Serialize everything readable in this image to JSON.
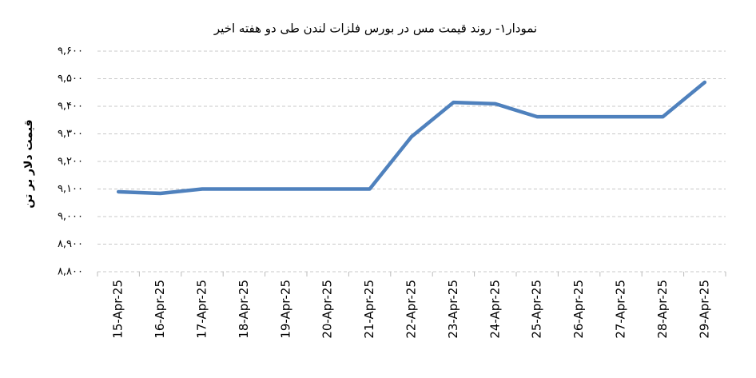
{
  "chart_data": {
    "type": "line",
    "title": "نمودار۱- روند قیمت مس در بورس فلزات لندن طی دو هفته اخیر",
    "y_label": "قیمت دلار بر تن",
    "categories": [
      "15-Apr-25",
      "16-Apr-25",
      "17-Apr-25",
      "18-Apr-25",
      "19-Apr-25",
      "20-Apr-25",
      "21-Apr-25",
      "22-Apr-25",
      "23-Apr-25",
      "24-Apr-25",
      "25-Apr-25",
      "26-Apr-25",
      "27-Apr-25",
      "28-Apr-25",
      "29-Apr-25"
    ],
    "values": [
      9090,
      9084,
      9100,
      9100,
      9100,
      9100,
      9100,
      9290,
      9414,
      9409,
      9362,
      9362,
      9362,
      9362,
      9487
    ],
    "color": "#4f81bd",
    "ylim": [
      8800,
      9600
    ],
    "yticks": [
      {
        "value": 8800,
        "label": "۸,۸۰۰"
      },
      {
        "value": 8900,
        "label": "۸,۹۰۰"
      },
      {
        "value": 9000,
        "label": "۹,۰۰۰"
      },
      {
        "value": 9100,
        "label": "۹,۱۰۰"
      },
      {
        "value": 9200,
        "label": "۹,۲۰۰"
      },
      {
        "value": 9300,
        "label": "۹,۳۰۰"
      },
      {
        "value": 9400,
        "label": "۹,۴۰۰"
      },
      {
        "value": 9500,
        "label": "۹,۵۰۰"
      },
      {
        "value": 9600,
        "label": "۹,۶۰۰"
      }
    ],
    "grid": true
  }
}
